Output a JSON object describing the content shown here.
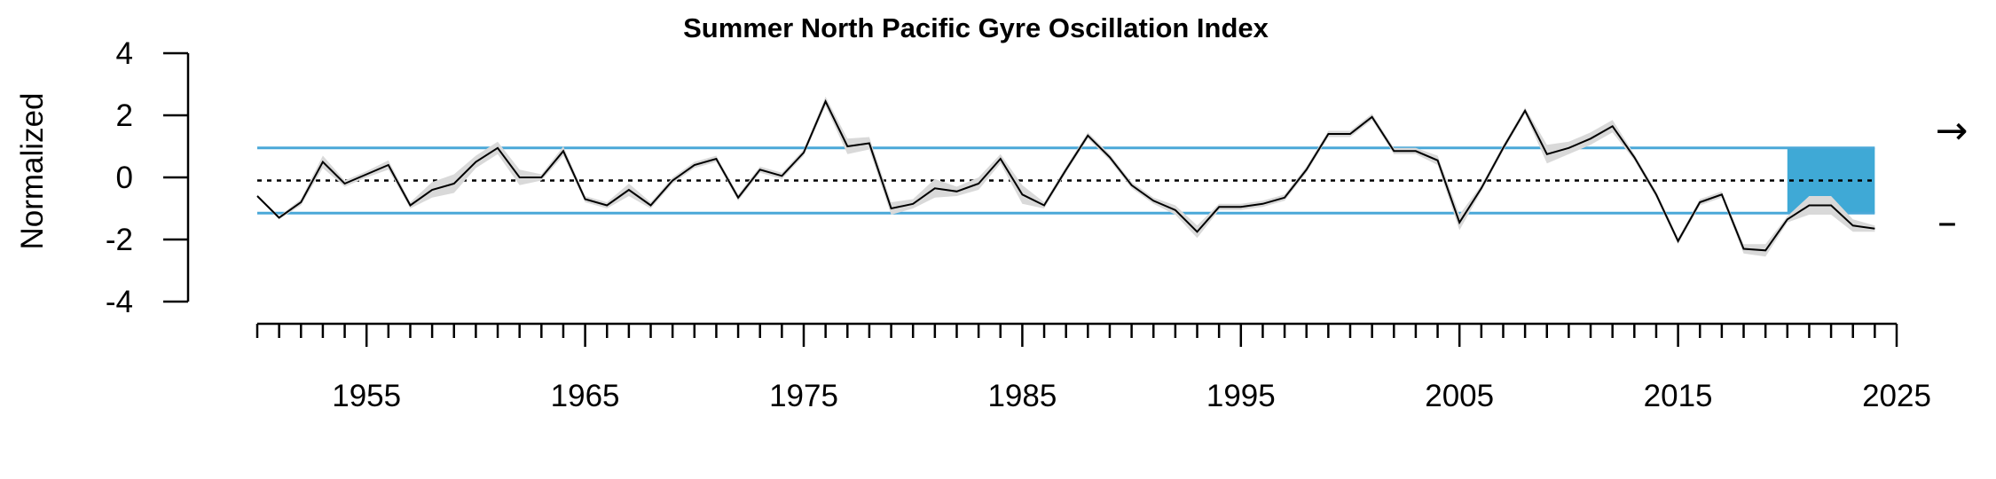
{
  "chart_data": {
    "type": "line",
    "title": "Summer North Pacific Gyre Oscillation Index",
    "ylabel": "Normalized",
    "xlabel": "",
    "xlim": [
      1950,
      2025
    ],
    "ylim": [
      -4,
      4
    ],
    "yticks": [
      -4,
      -2,
      0,
      2,
      4
    ],
    "ytick_labels": [
      "-4",
      "-2",
      "0",
      "2",
      "4"
    ],
    "xticks_major": [
      1955,
      1965,
      1975,
      1985,
      1995,
      2005,
      2015,
      2025
    ],
    "xtick_labels": [
      "1955",
      "1965",
      "1975",
      "1985",
      "1995",
      "2005",
      "2015",
      "2025"
    ],
    "mean": -0.1,
    "sd_upper": 0.95,
    "sd_lower": -1.15,
    "recent_window": [
      2020,
      2024
    ],
    "trend_symbol": "→",
    "mean_symbol": "–",
    "colors": {
      "line": "#000000",
      "band": "#d9d9d9",
      "sd_lines": "#4aa8d8",
      "recent_fill": "#3fa9d6",
      "mean_line": "#000000"
    },
    "series": [
      {
        "x": [
          1950,
          1951,
          1952,
          1953,
          1954,
          1955,
          1956,
          1957,
          1958,
          1959,
          1960,
          1961,
          1962,
          1963,
          1964,
          1965,
          1966,
          1967,
          1968,
          1969,
          1970,
          1971,
          1972,
          1973,
          1974,
          1975,
          1976,
          1977,
          1978,
          1979,
          1980,
          1981,
          1982,
          1983,
          1984,
          1985,
          1986,
          1987,
          1988,
          1989,
          1990,
          1991,
          1992,
          1993,
          1994,
          1995,
          1996,
          1997,
          1998,
          1999,
          2000,
          2001,
          2002,
          2003,
          2004,
          2005,
          2006,
          2007,
          2008,
          2009,
          2010,
          2011,
          2012,
          2013,
          2014,
          2015,
          2016,
          2017,
          2018,
          2019,
          2020,
          2021,
          2022,
          2023,
          2024
        ],
        "values": [
          -0.6,
          -1.3,
          -0.8,
          0.5,
          -0.2,
          0.1,
          0.4,
          -0.9,
          -0.4,
          -0.2,
          0.5,
          0.95,
          0.0,
          0.0,
          0.85,
          -0.7,
          -0.9,
          -0.4,
          -0.9,
          -0.1,
          0.4,
          0.6,
          -0.65,
          0.25,
          0.05,
          0.8,
          2.45,
          1.0,
          1.1,
          -1.0,
          -0.85,
          -0.35,
          -0.45,
          -0.2,
          0.6,
          -0.55,
          -0.9,
          0.25,
          1.35,
          0.65,
          -0.25,
          -0.75,
          -1.05,
          -1.75,
          -0.95,
          -0.95,
          -0.85,
          -0.65,
          0.25,
          1.4,
          1.4,
          1.95,
          0.85,
          0.85,
          0.55,
          -1.45,
          -0.35,
          0.95,
          2.15,
          0.75,
          0.95,
          1.25,
          1.65,
          0.65,
          -0.55,
          -2.05,
          -0.8,
          -0.55,
          -2.3,
          -2.35,
          -1.35,
          -0.9,
          -0.9,
          -1.55,
          -1.65
        ],
        "band": [
          0.05,
          0.05,
          0.1,
          0.2,
          0.1,
          0.1,
          0.15,
          0.1,
          0.25,
          0.3,
          0.2,
          0.2,
          0.25,
          0.1,
          0.15,
          0.1,
          0.1,
          0.2,
          0.1,
          0.1,
          0.1,
          0.1,
          0.1,
          0.1,
          0.1,
          0.1,
          0.15,
          0.25,
          0.2,
          0.2,
          0.15,
          0.3,
          0.15,
          0.2,
          0.15,
          0.3,
          0.1,
          0.1,
          0.1,
          0.1,
          0.1,
          0.1,
          0.15,
          0.2,
          0.1,
          0.1,
          0.1,
          0.1,
          0.1,
          0.1,
          0.1,
          0.1,
          0.1,
          0.1,
          0.15,
          0.25,
          0.1,
          0.1,
          0.1,
          0.3,
          0.2,
          0.2,
          0.2,
          0.1,
          0.1,
          0.1,
          0.1,
          0.1,
          0.15,
          0.2,
          0.1,
          0.3,
          0.3,
          0.2,
          0.1
        ]
      }
    ]
  }
}
